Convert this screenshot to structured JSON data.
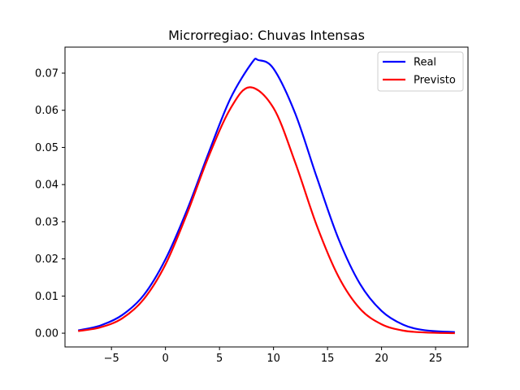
{
  "chart_data": {
    "type": "line",
    "title": "Microrregiao: Chuvas Intensas",
    "xlabel": "",
    "ylabel": "",
    "xlim": [
      -9.3,
      28.0
    ],
    "ylim": [
      -0.0037,
      0.077
    ],
    "xticks": [
      -5,
      0,
      5,
      10,
      15,
      20,
      25
    ],
    "xtick_labels": [
      "−5",
      "0",
      "5",
      "10",
      "15",
      "20",
      "25"
    ],
    "yticks": [
      0.0,
      0.01,
      0.02,
      0.03,
      0.04,
      0.05,
      0.06,
      0.07
    ],
    "ytick_labels": [
      "0.00",
      "0.01",
      "0.02",
      "0.03",
      "0.04",
      "0.05",
      "0.06",
      "0.07"
    ],
    "grid": false,
    "legend_position": "top-right",
    "series": [
      {
        "name": "Real",
        "color": "#0000ff",
        "x": [
          -8,
          -6,
          -4,
          -2,
          0,
          2,
          4,
          6,
          8,
          8.6,
          10,
          12,
          14,
          16,
          18,
          20,
          22,
          24,
          26.7
        ],
        "y": [
          0.0008,
          0.0021,
          0.0049,
          0.0103,
          0.0199,
          0.0332,
          0.0486,
          0.0631,
          0.0728,
          0.0735,
          0.0712,
          0.0592,
          0.042,
          0.0255,
          0.0133,
          0.006,
          0.0023,
          0.0008,
          0.0003
        ]
      },
      {
        "name": "Previsto",
        "color": "#ff0000",
        "x": [
          -8,
          -6,
          -4,
          -2,
          0,
          2,
          4,
          6,
          7.8,
          10,
          12,
          14,
          16,
          18,
          20,
          22,
          24,
          26.7
        ],
        "y": [
          0.0006,
          0.0016,
          0.004,
          0.0092,
          0.0185,
          0.0322,
          0.0476,
          0.0604,
          0.0662,
          0.0606,
          0.046,
          0.029,
          0.0153,
          0.0066,
          0.0024,
          0.0007,
          0.0002,
          0.0
        ]
      }
    ]
  }
}
